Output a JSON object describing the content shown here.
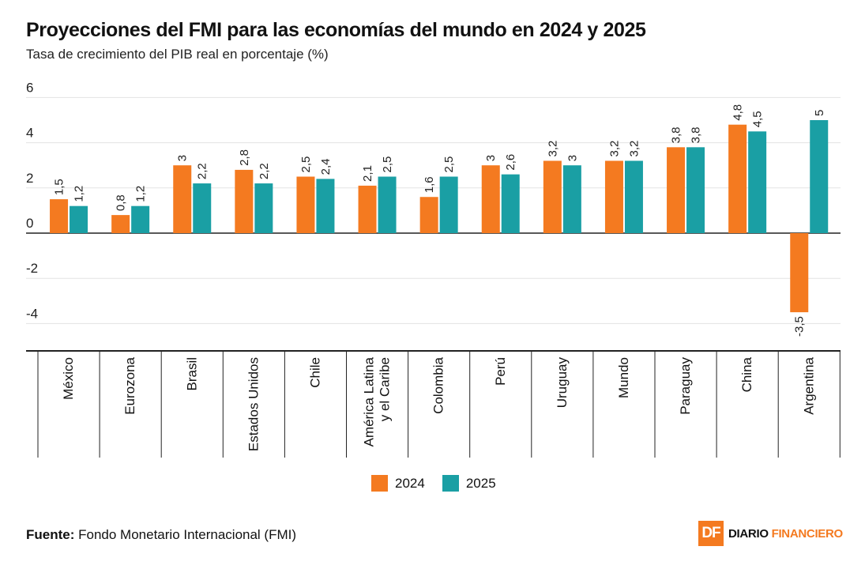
{
  "header": {
    "title": "Proyecciones del FMI para las economías del mundo en 2024 y 2025",
    "subtitle": "Tasa de crecimiento del PIB real en porcentaje (%)"
  },
  "footer": {
    "source_label": "Fuente:",
    "source_text": "Fondo Monetario Internacional (FMI)",
    "logo_mark": "DF",
    "logo_word1": "DIARIO",
    "logo_word2": "FINANCIERO"
  },
  "colors": {
    "series_2024": "#f47a20",
    "series_2025": "#1a9fa4"
  },
  "chart_data": {
    "type": "bar",
    "title": "Proyecciones del FMI para las economías del mundo en 2024 y 2025",
    "subtitle": "Tasa de crecimiento del PIB real en porcentaje (%)",
    "xlabel": "",
    "ylabel": "",
    "ylim": [
      -5.5,
      6
    ],
    "yticks": [
      6,
      4,
      2,
      0,
      -2,
      -4
    ],
    "ytick_labels": [
      "6",
      "4",
      "2",
      "0",
      "-2",
      "-4"
    ],
    "grid": true,
    "legend_position": "bottom-center",
    "categories": [
      [
        "México"
      ],
      [
        "Eurozona"
      ],
      [
        "Brasil"
      ],
      [
        "Estados Unidos"
      ],
      [
        "Chile"
      ],
      [
        "América Latina",
        "y el Caribe"
      ],
      [
        "Colombia"
      ],
      [
        "Perú"
      ],
      [
        "Uruguay"
      ],
      [
        "Mundo"
      ],
      [
        "Paraguay"
      ],
      [
        "China"
      ],
      [
        "Argentina"
      ]
    ],
    "series": [
      {
        "name": "2024",
        "color": "#f47a20",
        "values": [
          1.5,
          0.8,
          3,
          2.8,
          2.5,
          2.1,
          1.6,
          3,
          3.2,
          3.2,
          3.8,
          4.8,
          -3.5
        ],
        "labels": [
          "1,5",
          "0,8",
          "3",
          "2,8",
          "2,5",
          "2,1",
          "1,6",
          "3",
          "3,2",
          "3,2",
          "3,8",
          "4,8",
          "-3,5"
        ]
      },
      {
        "name": "2025",
        "color": "#1a9fa4",
        "values": [
          1.2,
          1.2,
          2.2,
          2.2,
          2.4,
          2.5,
          2.5,
          2.6,
          3,
          3.2,
          3.8,
          4.5,
          5
        ],
        "labels": [
          "1,2",
          "1,2",
          "2,2",
          "2,2",
          "2,4",
          "2,5",
          "2,5",
          "2,6",
          "3",
          "3,2",
          "3,8",
          "4,5",
          "5"
        ]
      }
    ]
  }
}
